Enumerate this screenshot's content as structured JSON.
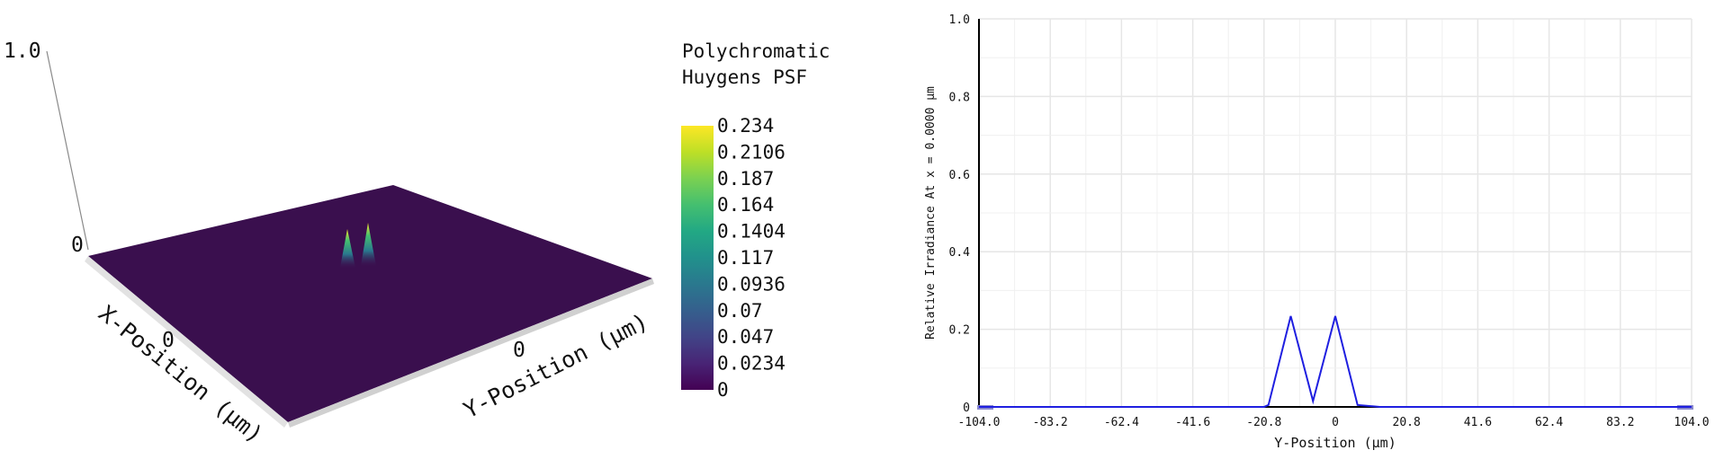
{
  "chart_data": [
    {
      "type": "surface3d",
      "title_lines": [
        "Polychromatic",
        "Huygens PSF"
      ],
      "z_axis_ticks": [
        "1.0",
        "0"
      ],
      "x_axis": {
        "label": "X-Position (µm)",
        "ticks": [
          "0"
        ]
      },
      "y_axis": {
        "label": "Y-Position (µm)",
        "ticks": [
          "0"
        ]
      },
      "colorbar": {
        "colormap": "viridis",
        "min": 0,
        "max": 0.234,
        "ticks": [
          "0.234",
          "0.2106",
          "0.187",
          "0.164",
          "0.1404",
          "0.117",
          "0.0936",
          "0.07",
          "0.047",
          "0.0234",
          "0"
        ]
      },
      "peaks": [
        {
          "y_um": -13.0,
          "x_um": 0,
          "value": 0.234
        },
        {
          "y_um": 0.0,
          "x_um": 0,
          "value": 0.234
        }
      ],
      "colors": {
        "surface": "#3b0f4f",
        "peak_top": "#fde725",
        "peak_base": "#2a788e"
      }
    },
    {
      "type": "line",
      "xlabel": "Y-Position (µm)",
      "ylabel": "Relative Irradiance At x = 0.0000 µm",
      "xlim": [
        -104.0,
        104.0
      ],
      "ylim": [
        0,
        1.0
      ],
      "x_ticks": [
        "-104.0",
        "-83.2",
        "-62.4",
        "-41.6",
        "-20.8",
        "0",
        "20.8",
        "41.6",
        "62.4",
        "83.2",
        "104.0"
      ],
      "y_ticks": [
        "0",
        "0.2",
        "0.4",
        "0.6",
        "0.8",
        "1.0"
      ],
      "grid": true,
      "series": [
        {
          "color": "#1f1fe0",
          "x": [
            -104.0,
            -20.8,
            -19.5,
            -13.0,
            -6.5,
            0.0,
            6.5,
            13.0,
            104.0
          ],
          "y": [
            0.0,
            0.0,
            0.005,
            0.234,
            0.015,
            0.234,
            0.005,
            0.0,
            0.0
          ]
        }
      ]
    }
  ]
}
